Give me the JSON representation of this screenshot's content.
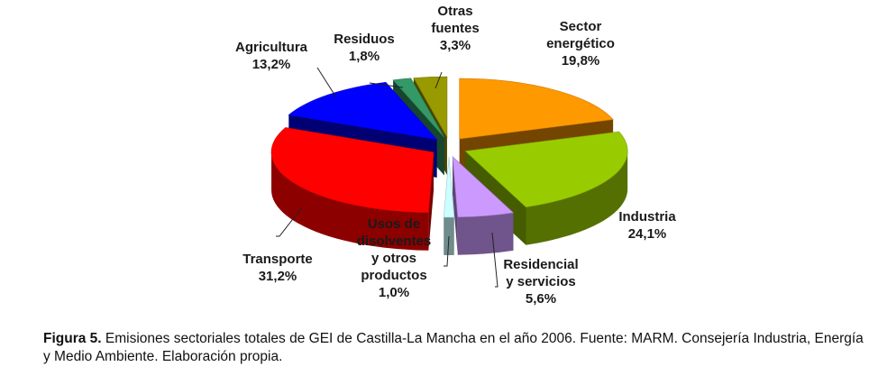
{
  "chart_data": {
    "type": "pie",
    "style": "3d-exploded",
    "slices": [
      {
        "label_lines": [
          "Sector",
          "energético"
        ],
        "pct_label": "19,8%",
        "value": 19.8,
        "color": "#ff9900"
      },
      {
        "label_lines": [
          "Industria"
        ],
        "pct_label": "24,1%",
        "value": 24.1,
        "color": "#99cc00"
      },
      {
        "label_lines": [
          "Residencial",
          "y servicios"
        ],
        "pct_label": "5,6%",
        "value": 5.6,
        "color": "#cc99ff"
      },
      {
        "label_lines": [
          "Usos de",
          "disolventes",
          "y otros",
          "productos"
        ],
        "pct_label": "1,0%",
        "value": 1.0,
        "color": "#ccffff"
      },
      {
        "label_lines": [
          "Transporte"
        ],
        "pct_label": "31,2%",
        "value": 31.2,
        "color": "#ff0000"
      },
      {
        "label_lines": [
          "Agricultura"
        ],
        "pct_label": "13,2%",
        "value": 13.2,
        "color": "#0000ff"
      },
      {
        "label_lines": [
          "Residuos"
        ],
        "pct_label": "1,8%",
        "value": 1.8,
        "color": "#339966"
      },
      {
        "label_lines": [
          "Otras",
          "fuentes"
        ],
        "pct_label": "3,3%",
        "value": 3.3,
        "color": "#999900"
      }
    ]
  },
  "caption": {
    "figure_label": "Figura 5.",
    "text": " Emisiones sectoriales totales de GEI de Castilla-La Mancha en el año 2006. Fuente: MARM. Consejería Industria, Energía y Medio Ambiente. Elaboración  propia."
  }
}
